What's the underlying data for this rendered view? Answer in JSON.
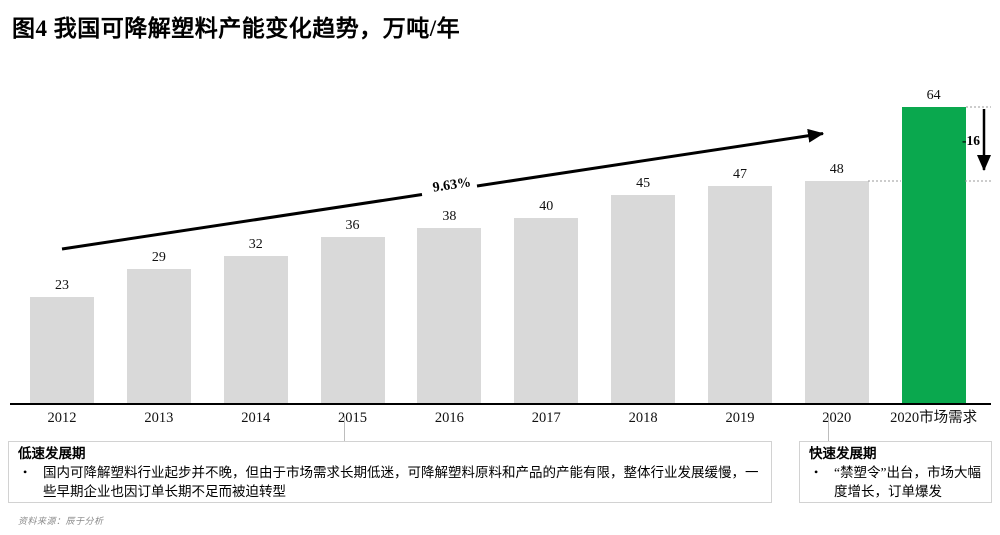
{
  "figure": {
    "title": "图4 我国可降解塑料产能变化趋势，万吨/年",
    "source": "资料来源：辰于分析"
  },
  "chart_data": {
    "type": "bar",
    "title": "图4 我国可降解塑料产能变化趋势，万吨/年",
    "unit": "万吨/年",
    "categories": [
      "2012",
      "2013",
      "2014",
      "2015",
      "2016",
      "2017",
      "2018",
      "2019",
      "2020",
      "2020市场需求"
    ],
    "values": [
      23,
      29,
      32,
      36,
      38,
      40,
      45,
      47,
      48,
      64
    ],
    "highlight_index": 9,
    "colors": {
      "bar_default": "#d9d9d9",
      "bar_highlight": "#0aa84e",
      "trend_arrow": "#000000",
      "dotted_line": "#9a9a9a"
    },
    "ylim": [
      0,
      70
    ],
    "grid": false,
    "legend": "none",
    "annotations": {
      "cagr_label": "9.63%",
      "gap_label": "-16"
    }
  },
  "callouts": {
    "left": {
      "title": "低速发展期",
      "bullet_marker": "•",
      "bullet": "国内可降解塑料行业起步并不晚，但由于市场需求长期低迷，可降解塑料原料和产品的产能有限，整体行业发展缓慢，一些早期企业也因订单长期不足而被迫转型"
    },
    "right": {
      "title": "快速发展期",
      "bullet_marker": "•",
      "bullet": "“禁塑令”出台，市场大幅度增长，订单爆发"
    }
  }
}
